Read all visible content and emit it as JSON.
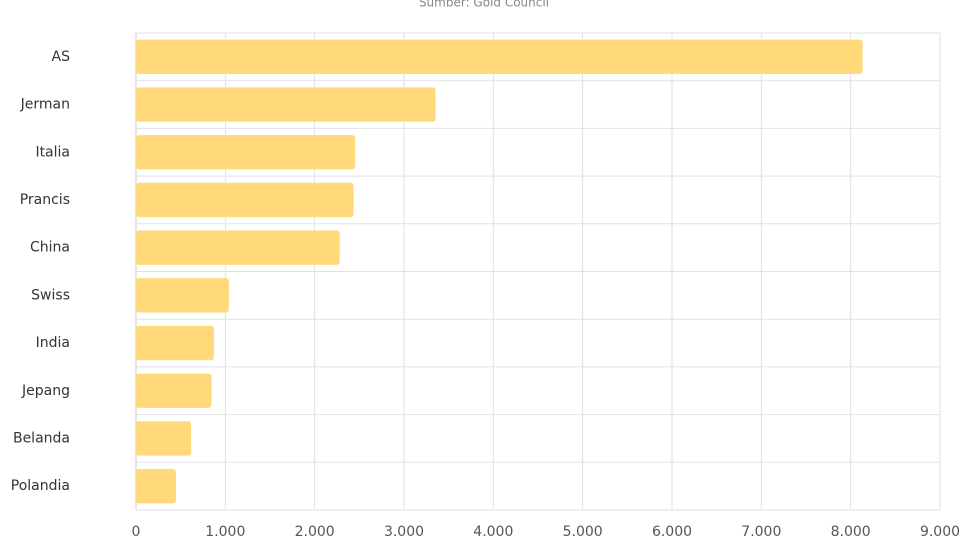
{
  "chart_data": {
    "type": "bar",
    "orientation": "horizontal",
    "subtitle": "Sumber: Gold Council",
    "categories": [
      "AS",
      "Jerman",
      "Italia",
      "Prancis",
      "China",
      "Swiss",
      "India",
      "Jepang",
      "Belanda",
      "Polandia"
    ],
    "values": [
      8133,
      3352,
      2452,
      2436,
      2280,
      1040,
      873,
      846,
      616,
      448
    ],
    "color": "#ffd97a",
    "xlim": [
      0,
      9000
    ],
    "xticks": [
      0,
      {
        "value": 1000,
        "label": "1.000"
      },
      {
        "value": 2000,
        "label": "2.000"
      },
      {
        "value": 3000,
        "label": "3.000"
      },
      {
        "value": 4000,
        "label": "4.000"
      },
      {
        "value": 5000,
        "label": "5.000"
      },
      {
        "value": 6000,
        "label": "6.000"
      },
      {
        "value": 7000,
        "label": "7.000"
      },
      {
        "value": 8000,
        "label": "8.000"
      },
      {
        "value": 9000,
        "label": "9.000"
      }
    ],
    "grid": true
  }
}
